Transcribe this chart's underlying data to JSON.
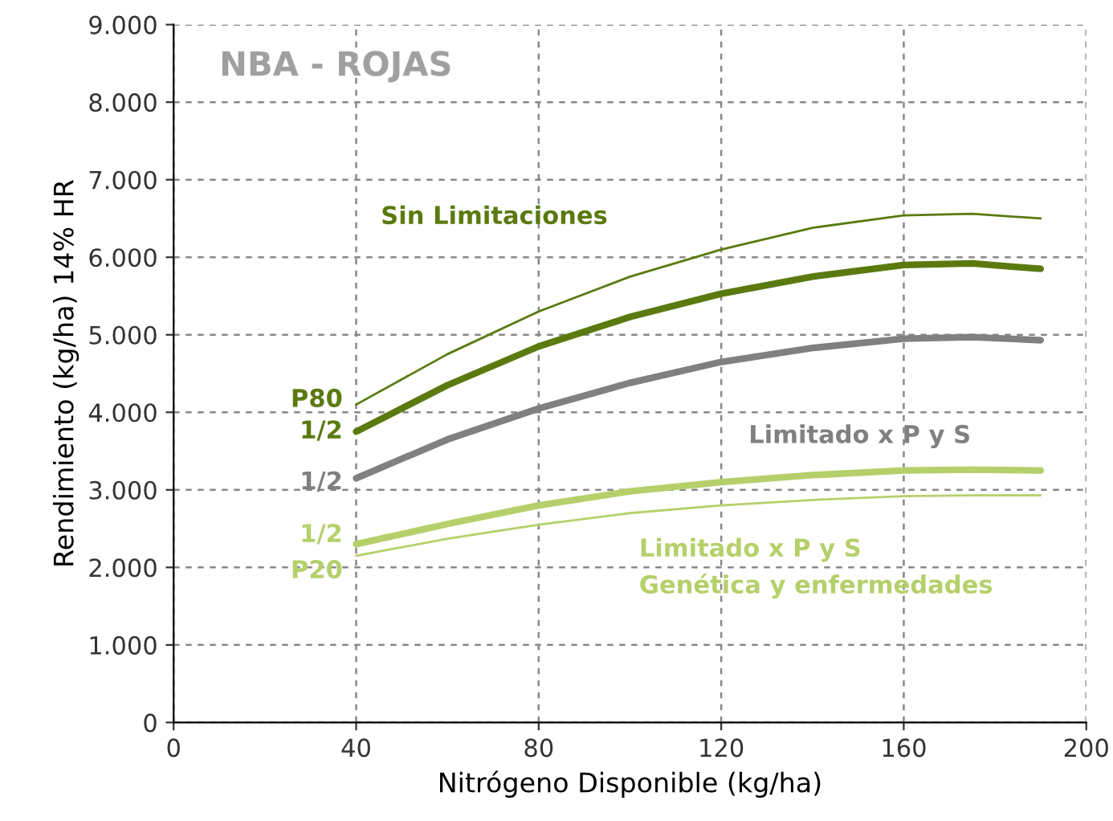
{
  "chart_data": {
    "type": "line",
    "title": "NBA - ROJAS",
    "xlabel": "Nitrógeno Disponible (kg/ha)",
    "ylabel": "Rendimiento (kg/ha) 14% HR",
    "x": [
      40,
      60,
      80,
      100,
      120,
      140,
      160,
      175,
      190
    ],
    "series": [
      {
        "name": "P80",
        "color": "#5a7a10",
        "values": [
          4100,
          4750,
          5300,
          5750,
          6100,
          6380,
          6540,
          6560,
          6500
        ]
      },
      {
        "name": "1/2",
        "color": "#5a7a10",
        "values": [
          3750,
          4350,
          4850,
          5230,
          5530,
          5750,
          5900,
          5920,
          5850
        ]
      },
      {
        "name": "1/2",
        "color": "#808080",
        "values": [
          3150,
          3650,
          4050,
          4380,
          4650,
          4830,
          4950,
          4970,
          4930
        ]
      },
      {
        "name": "1/2",
        "color": "#b5d06a",
        "values": [
          2300,
          2560,
          2800,
          2980,
          3100,
          3190,
          3250,
          3260,
          3250
        ]
      },
      {
        "name": "P20",
        "color": "#b5d06a",
        "values": [
          2150,
          2370,
          2550,
          2700,
          2800,
          2870,
          2920,
          2930,
          2930
        ]
      }
    ],
    "annotations": [
      "Sin Limitaciones",
      "Limitado x P y S",
      "Limitado x P y S\nGenética y enfermedades"
    ],
    "xlim": [
      0,
      200
    ],
    "xticks": [
      0,
      40,
      80,
      120,
      160,
      200
    ],
    "ylim": [
      0,
      9000
    ],
    "yticks": [
      0,
      {
        "value": 1000,
        "label": "1.000"
      },
      {
        "value": 2000,
        "label": "2.000"
      },
      {
        "value": 3000,
        "label": "3.000"
      },
      {
        "value": 4000,
        "label": "4.000"
      },
      {
        "value": 5000,
        "label": "5.000"
      },
      {
        "value": 6000,
        "label": "6.000"
      },
      {
        "value": 7000,
        "label": "7.000"
      },
      {
        "value": 8000,
        "label": "8.000"
      },
      {
        "value": 9000,
        "label": "9.000"
      }
    ],
    "grid": true,
    "legend": false,
    "marker": "none",
    "line_style": "solid"
  }
}
